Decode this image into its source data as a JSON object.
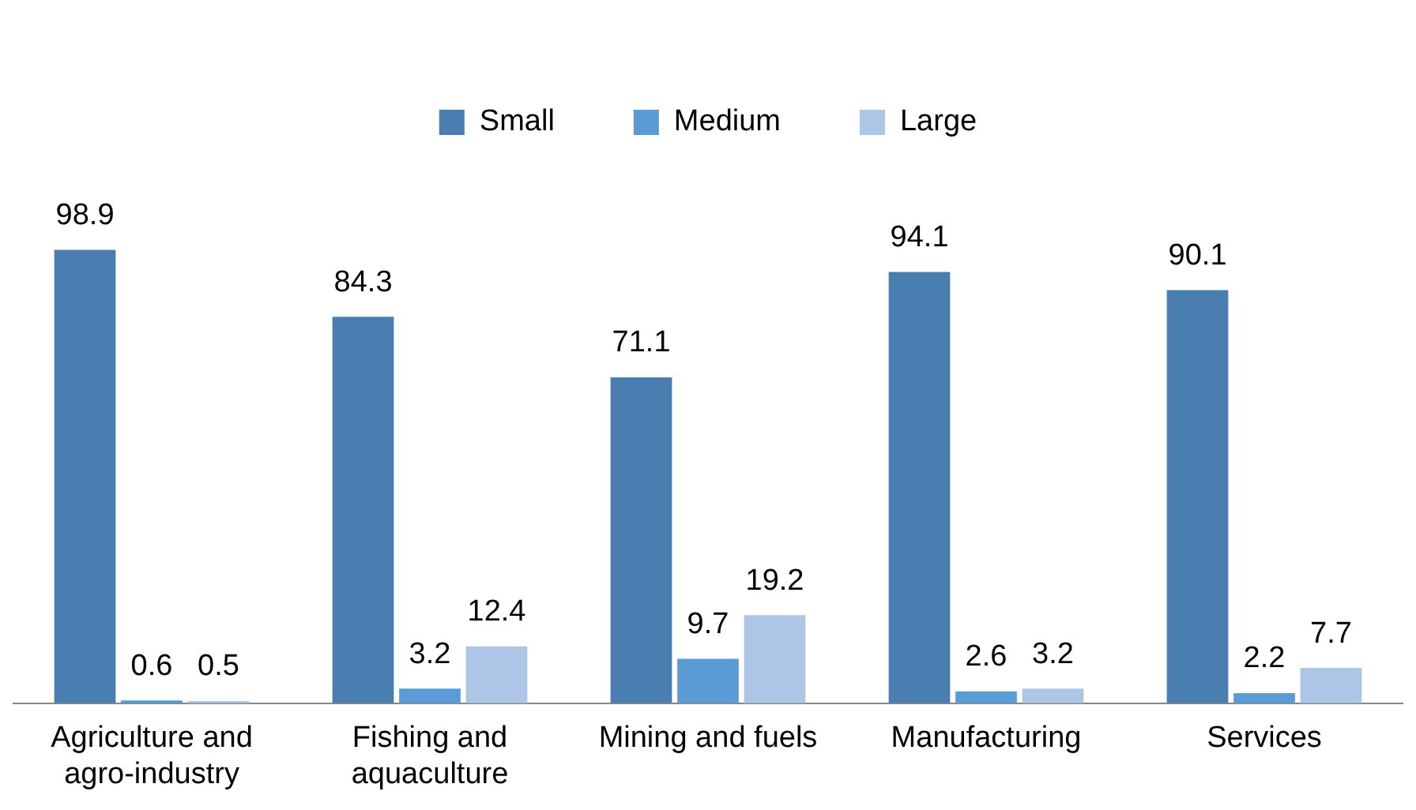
{
  "chart_data": {
    "type": "bar",
    "categories": [
      "Agriculture and agro-industry",
      "Fishing and aquaculture",
      "Mining and fuels",
      "Manufacturing",
      "Services"
    ],
    "series": [
      {
        "name": "Small",
        "color": "#4a7eb0",
        "values": [
          98.9,
          84.3,
          71.1,
          94.1,
          90.1
        ]
      },
      {
        "name": "Medium",
        "color": "#5b9bd5",
        "values": [
          0.6,
          3.2,
          9.7,
          2.6,
          2.2
        ]
      },
      {
        "name": "Large",
        "color": "#adc6e5",
        "values": [
          0.5,
          12.4,
          19.2,
          3.2,
          7.7
        ]
      }
    ],
    "data_labels": true,
    "legend": "top",
    "grid": false
  }
}
